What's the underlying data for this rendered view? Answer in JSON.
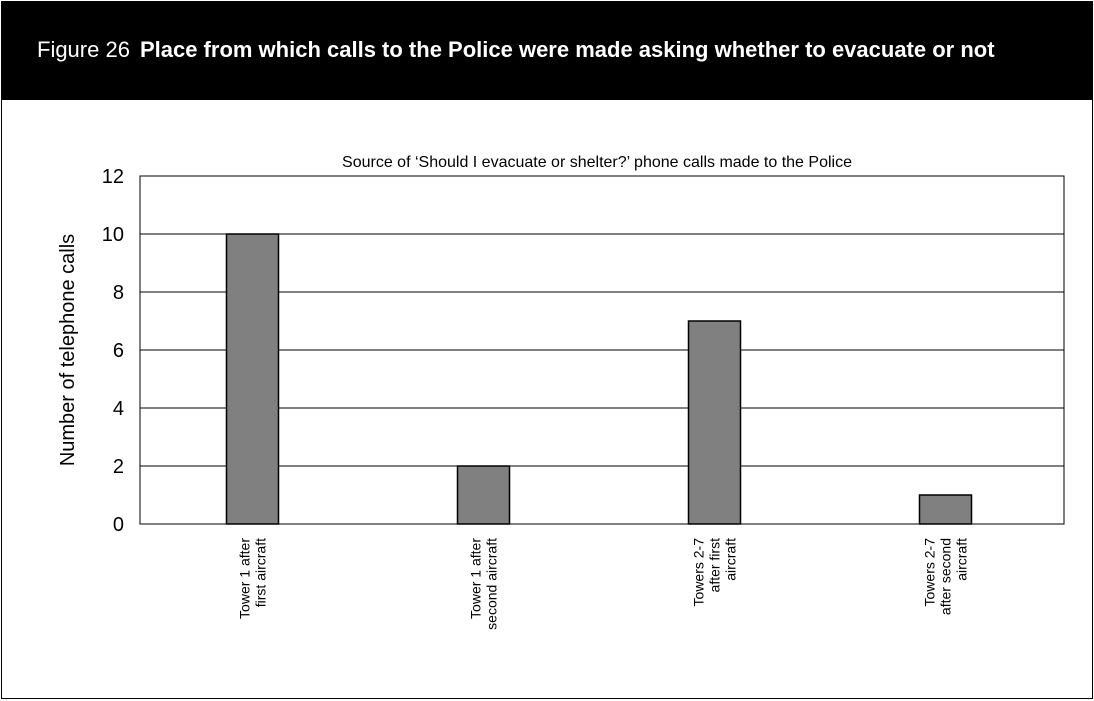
{
  "figure": {
    "label": "Figure 26",
    "title": "Place from which calls to the Police were made asking whether to evacuate or not"
  },
  "colors": {
    "header_bg": "#000000",
    "header_text": "#ffffff",
    "bar_fill": "#808080",
    "bar_stroke": "#000000",
    "gridline": "#000000"
  },
  "chart_data": {
    "type": "bar",
    "title": "Source of ‘Should I evacuate or shelter?’ phone calls made to the Police",
    "xlabel": "",
    "ylabel": "Number of telephone calls",
    "categories": [
      [
        "Tower 1 after",
        "first aircraft"
      ],
      [
        "Tower 1 after",
        "second aircraft"
      ],
      [
        "Towers 2-7",
        "after first",
        "aircraft"
      ],
      [
        "Towers 2-7",
        "after second",
        "aircraft"
      ]
    ],
    "values": [
      10,
      2,
      7,
      1
    ],
    "ylim": [
      0,
      12
    ],
    "yticks": [
      "0",
      "2",
      "4",
      "6",
      "8",
      "10",
      "12"
    ],
    "grid": true,
    "legend": "none"
  }
}
